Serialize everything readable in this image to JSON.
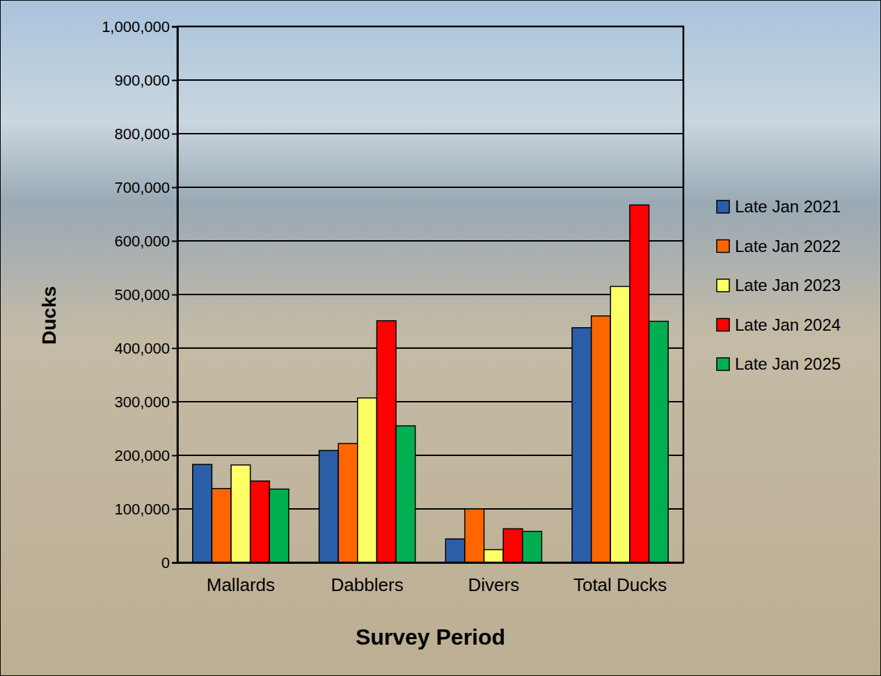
{
  "chart_data": {
    "type": "bar",
    "xlabel": "Survey Period",
    "ylabel": "Ducks",
    "categories": [
      "Mallards",
      "Dabblers",
      "Divers",
      "Total Ducks"
    ],
    "series": [
      {
        "name": "Late Jan 2021",
        "color": "#2a5fa8",
        "values": [
          183000,
          209000,
          44000,
          438000
        ]
      },
      {
        "name": "Late Jan 2022",
        "color": "#ff6600",
        "values": [
          138000,
          222000,
          100000,
          460000
        ]
      },
      {
        "name": "Late Jan 2023",
        "color": "#ffff66",
        "values": [
          182000,
          307000,
          24000,
          515000
        ]
      },
      {
        "name": "Late Jan 2024",
        "color": "#ff0000",
        "values": [
          152000,
          451000,
          63000,
          667000
        ]
      },
      {
        "name": "Late Jan 2025",
        "color": "#00b050",
        "values": [
          137000,
          255000,
          58000,
          450000
        ]
      }
    ],
    "ylim": [
      0,
      1000000
    ],
    "yticks": [
      0,
      {
        "value": 100000,
        "label": "100,000"
      },
      {
        "value": 200000,
        "label": "200,000"
      },
      {
        "value": 300000,
        "label": "300,000"
      },
      {
        "value": 400000,
        "label": "400,000"
      },
      {
        "value": 500000,
        "label": "500,000"
      },
      {
        "value": 600000,
        "label": "600,000"
      },
      {
        "value": 700000,
        "label": "700,000"
      },
      {
        "value": 800000,
        "label": "800,000"
      },
      {
        "value": 900000,
        "label": "900,000"
      },
      {
        "value": 1000000,
        "label": "1,000,000"
      }
    ],
    "grid": true,
    "legend": "right"
  }
}
